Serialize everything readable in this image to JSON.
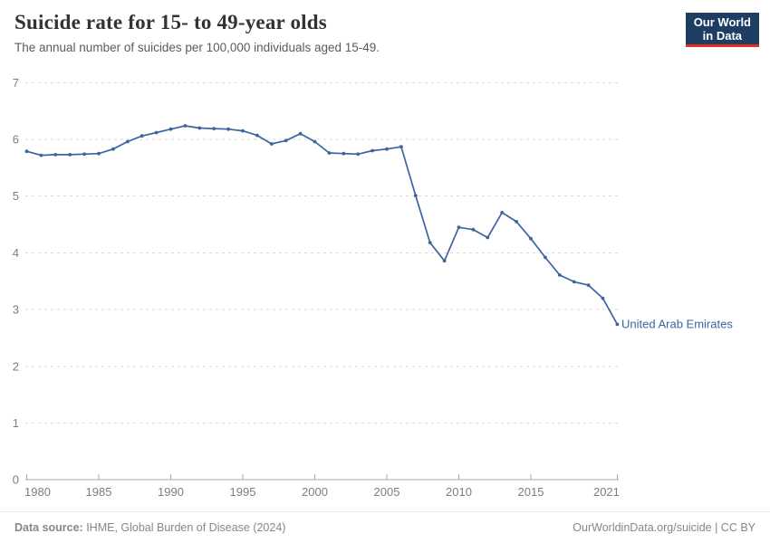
{
  "header": {
    "title": "Suicide rate for 15- to 49-year olds",
    "subtitle": "The annual number of suicides per 100,000 individuals aged 15-49."
  },
  "logo": {
    "line1": "Our World",
    "line2": "in Data",
    "bg_color": "#1d3d63",
    "accent_color": "#e0301f"
  },
  "chart_data": {
    "type": "line",
    "title": "Suicide rate for 15- to 49-year olds",
    "subtitle": "The annual number of suicides per 100,000 individuals aged 15-49.",
    "xlabel": "",
    "ylabel": "",
    "xlim": [
      1980,
      2021
    ],
    "ylim": [
      0,
      7
    ],
    "x_ticks": [
      1980,
      1985,
      1990,
      1995,
      2000,
      2005,
      2010,
      2015,
      2021
    ],
    "y_ticks": [
      0,
      1,
      2,
      3,
      4,
      5,
      6,
      7
    ],
    "grid": "horizontal-dashed",
    "legend_position": "end-of-line-label",
    "entity_label": "United Arab Emirates",
    "series": [
      {
        "name": "United Arab Emirates",
        "color": "#3d63a0",
        "x": [
          1980,
          1981,
          1982,
          1983,
          1984,
          1985,
          1986,
          1987,
          1988,
          1989,
          1990,
          1991,
          1992,
          1993,
          1994,
          1995,
          1996,
          1997,
          1998,
          1999,
          2000,
          2001,
          2002,
          2003,
          2004,
          2005,
          2006,
          2007,
          2008,
          2009,
          2010,
          2011,
          2012,
          2013,
          2014,
          2015,
          2016,
          2017,
          2018,
          2019,
          2020,
          2021
        ],
        "values": [
          5.79,
          5.72,
          5.73,
          5.73,
          5.74,
          5.75,
          5.83,
          5.96,
          6.06,
          6.12,
          6.18,
          6.24,
          6.2,
          6.19,
          6.18,
          6.15,
          6.07,
          5.92,
          5.98,
          6.1,
          5.96,
          5.76,
          5.75,
          5.74,
          5.8,
          5.83,
          5.87,
          5.01,
          4.18,
          3.86,
          4.45,
          4.41,
          4.27,
          4.71,
          4.55,
          4.25,
          3.92,
          3.61,
          3.49,
          3.43,
          3.2,
          2.74
        ]
      }
    ],
    "colors": {
      "line": "#3d63a0",
      "grid": "#dadada",
      "axis": "#a8a8a8",
      "tick_text": "#7e7e7e"
    }
  },
  "footer": {
    "source_label": "Data source:",
    "source_text": " IHME, Global Burden of Disease (2024)",
    "credit": "OurWorldinData.org/suicide | CC BY"
  }
}
